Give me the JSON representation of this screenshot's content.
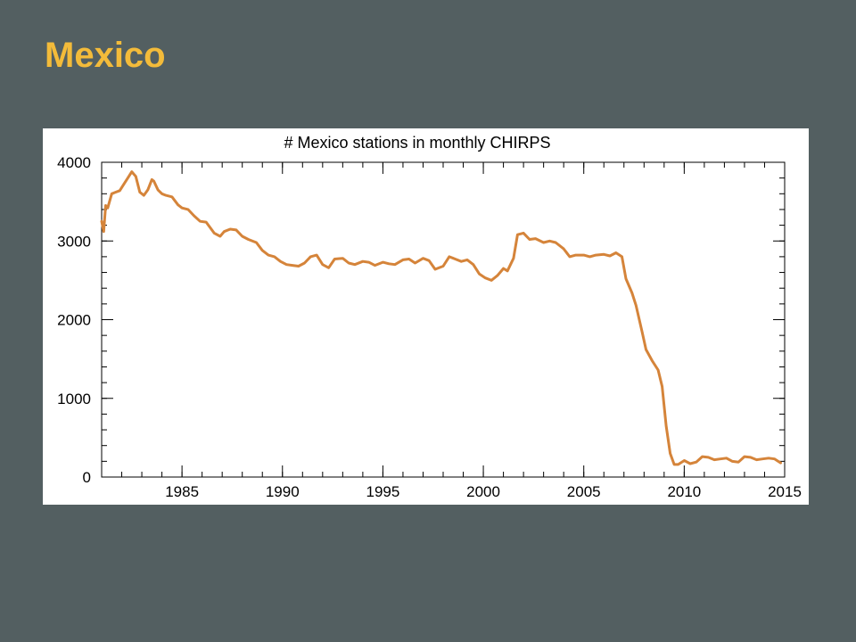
{
  "slide": {
    "title": "Mexico"
  },
  "colors": {
    "background": "#535f61",
    "title": "#f3bb3a",
    "series": "#d5843a",
    "panel": "#ffffff"
  },
  "chart_data": {
    "type": "line",
    "title": "# Mexico stations in monthly CHIRPS",
    "xlabel": "",
    "ylabel": "",
    "xlim": [
      1981,
      2015
    ],
    "ylim": [
      0,
      4000
    ],
    "x_ticks": [
      1985,
      1990,
      1995,
      2000,
      2005,
      2010,
      2015
    ],
    "y_ticks": [
      0,
      1000,
      2000,
      3000,
      4000
    ],
    "grid": false,
    "series": [
      {
        "x": [
          1981.0,
          1981.1,
          1981.2,
          1981.3,
          1981.5,
          1981.7,
          1981.9,
          1982.1,
          1982.3,
          1982.5,
          1982.6,
          1982.7,
          1982.9,
          1983.1,
          1983.3,
          1983.5,
          1983.6,
          1983.8,
          1984.0,
          1984.2,
          1984.5,
          1984.8,
          1985.0,
          1985.3,
          1985.6,
          1985.9,
          1986.2,
          1986.6,
          1986.9,
          1987.1,
          1987.4,
          1987.7,
          1988.0,
          1988.3,
          1988.7,
          1989.0,
          1989.3,
          1989.6,
          1989.9,
          1990.2,
          1990.5,
          1990.8,
          1991.1,
          1991.4,
          1991.7,
          1992.0,
          1992.3,
          1992.6,
          1993.0,
          1993.3,
          1993.6,
          1994.0,
          1994.3,
          1994.6,
          1995.0,
          1995.3,
          1995.6,
          1996.0,
          1996.3,
          1996.6,
          1997.0,
          1997.3,
          1997.6,
          1998.0,
          1998.3,
          1998.6,
          1998.9,
          1999.2,
          1999.5,
          1999.8,
          2000.1,
          2000.4,
          2000.7,
          2001.0,
          2001.2,
          2001.5,
          2001.7,
          2002.0,
          2002.3,
          2002.6,
          2003.0,
          2003.3,
          2003.6,
          2004.0,
          2004.3,
          2004.6,
          2005.0,
          2005.3,
          2005.6,
          2006.0,
          2006.3,
          2006.6,
          2006.9,
          2007.1,
          2007.4,
          2007.6,
          2007.9,
          2008.1,
          2008.4,
          2008.7,
          2008.9,
          2009.1,
          2009.3,
          2009.5,
          2009.7,
          2010.0,
          2010.3,
          2010.6,
          2010.9,
          2011.2,
          2011.5,
          2011.8,
          2012.1,
          2012.4,
          2012.7,
          2013.0,
          2013.3,
          2013.6,
          2013.9,
          2014.2,
          2014.5,
          2014.8
        ],
        "y": [
          3250,
          3120,
          3450,
          3420,
          3600,
          3620,
          3640,
          3720,
          3800,
          3880,
          3850,
          3820,
          3620,
          3580,
          3650,
          3780,
          3760,
          3650,
          3600,
          3580,
          3560,
          3460,
          3420,
          3400,
          3320,
          3250,
          3240,
          3100,
          3060,
          3120,
          3150,
          3140,
          3060,
          3020,
          2980,
          2880,
          2820,
          2800,
          2740,
          2700,
          2690,
          2680,
          2720,
          2800,
          2820,
          2700,
          2660,
          2770,
          2780,
          2720,
          2700,
          2740,
          2730,
          2690,
          2730,
          2710,
          2700,
          2760,
          2770,
          2720,
          2780,
          2750,
          2640,
          2680,
          2800,
          2770,
          2740,
          2760,
          2700,
          2580,
          2530,
          2500,
          2560,
          2650,
          2620,
          2780,
          3080,
          3100,
          3020,
          3030,
          2980,
          3000,
          2980,
          2900,
          2800,
          2820,
          2820,
          2800,
          2820,
          2830,
          2810,
          2850,
          2800,
          2520,
          2340,
          2180,
          1850,
          1620,
          1480,
          1360,
          1150,
          650,
          300,
          160,
          160,
          210,
          170,
          190,
          260,
          250,
          220,
          230,
          240,
          200,
          190,
          260,
          250,
          220,
          230,
          240,
          230,
          180
        ]
      }
    ]
  }
}
